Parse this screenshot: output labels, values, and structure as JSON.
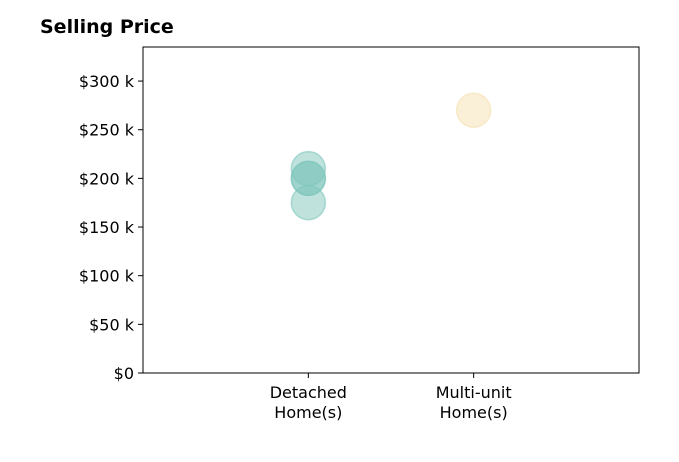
{
  "chart_data": {
    "type": "scatter",
    "title": "Selling Price",
    "xlabel": "",
    "ylabel": "",
    "categories": [
      "Detached\nHome(s)",
      "Multi-unit\nHome(s)"
    ],
    "ylim": [
      0,
      335000
    ],
    "yticks": [
      0,
      50000,
      100000,
      150000,
      200000,
      250000,
      300000
    ],
    "ytick_labels": [
      "$0",
      "$50 k",
      "$100 k",
      "$150 k",
      "$200 k",
      "$250 k",
      "$300 k"
    ],
    "grid": false,
    "points": [
      {
        "category": "Detached\nHome(s)",
        "y": 175000,
        "color": "#7fc6bc"
      },
      {
        "category": "Detached\nHome(s)",
        "y": 200000,
        "color": "#7fc6bc"
      },
      {
        "category": "Detached\nHome(s)",
        "y": 210000,
        "color": "#7fc6bc"
      },
      {
        "category": "Detached\nHome(s)",
        "y": 200000,
        "color": "#7fc6bc"
      },
      {
        "category": "Multi-unit\nHome(s)",
        "y": 270000,
        "color": "#f5dfb0"
      }
    ]
  }
}
